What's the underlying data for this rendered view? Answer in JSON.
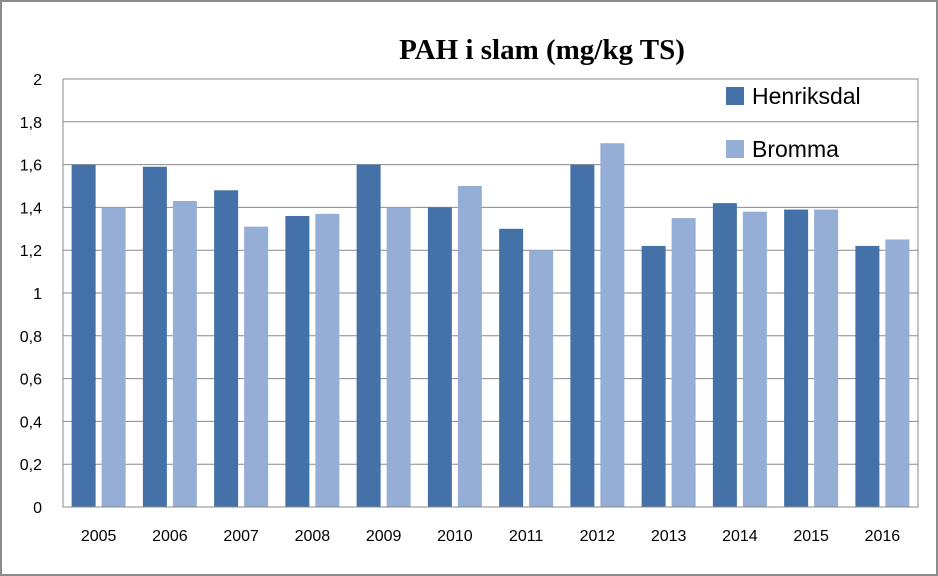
{
  "chart_data": {
    "type": "bar",
    "title": "PAH i slam (mg/kg TS)",
    "xlabel": "",
    "ylabel": "",
    "categories": [
      "2005",
      "2006",
      "2007",
      "2008",
      "2009",
      "2010",
      "2011",
      "2012",
      "2013",
      "2014",
      "2015",
      "2016"
    ],
    "series": [
      {
        "name": "Henriksdal",
        "color": "#4472a8",
        "values": [
          1.6,
          1.59,
          1.48,
          1.36,
          1.6,
          1.4,
          1.3,
          1.6,
          1.22,
          1.42,
          1.39,
          1.22
        ]
      },
      {
        "name": "Bromma",
        "color": "#95aed6",
        "values": [
          1.4,
          1.43,
          1.31,
          1.37,
          1.4,
          1.5,
          1.2,
          1.7,
          1.35,
          1.38,
          1.39,
          1.25
        ]
      }
    ],
    "ylim": [
      0,
      2
    ],
    "yticks": [
      "0",
      "0,2",
      "0,4",
      "0,6",
      "0,8",
      "1",
      "1,2",
      "1,4",
      "1,6",
      "1,8",
      "2"
    ],
    "grid": true,
    "legend": "top-right"
  }
}
